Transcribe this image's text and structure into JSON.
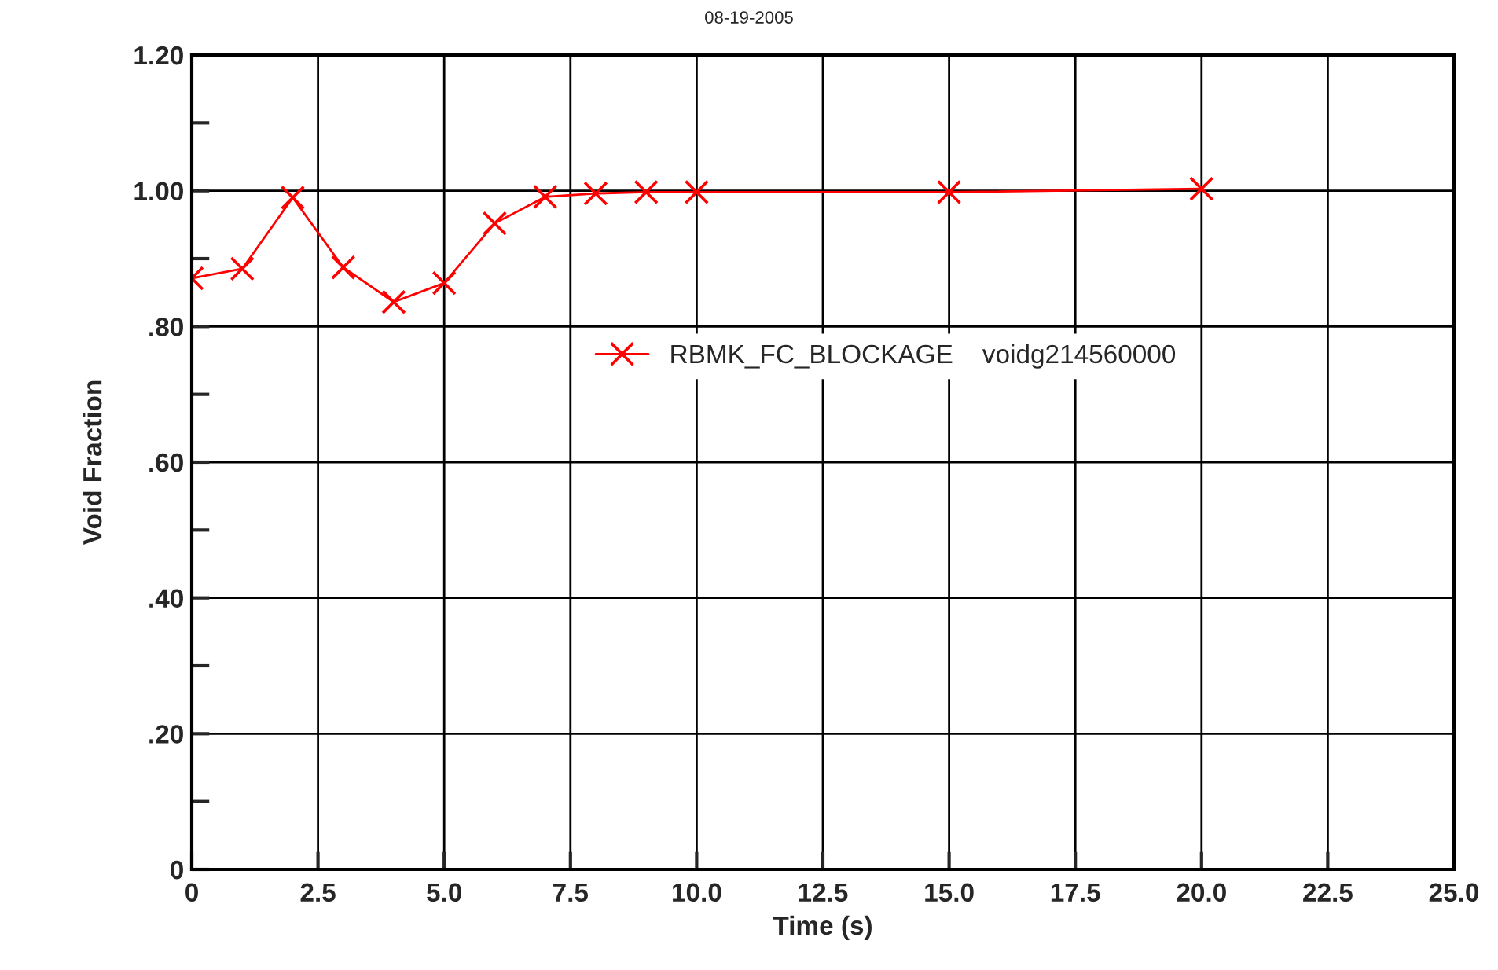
{
  "chart_data": {
    "type": "line",
    "title": "08-19-2005",
    "xlabel": "Time (s)",
    "ylabel": "Void Fraction",
    "xlim": [
      0,
      25
    ],
    "ylim": [
      0,
      1.2
    ],
    "xticks": [
      0,
      2.5,
      {
        "value": 5,
        "label": "5.0"
      },
      7.5,
      {
        "value": 10,
        "label": "10.0"
      },
      12.5,
      {
        "value": 15,
        "label": "15.0"
      },
      17.5,
      {
        "value": 20,
        "label": "20.0"
      },
      22.5,
      {
        "value": 25,
        "label": "25.0"
      }
    ],
    "yticks": [
      0,
      {
        "value": 0.1,
        "label": null
      },
      {
        "value": 0.2,
        "label": ".20"
      },
      {
        "value": 0.3,
        "label": null
      },
      {
        "value": 0.4,
        "label": ".40"
      },
      {
        "value": 0.5,
        "label": null
      },
      {
        "value": 0.6,
        "label": ".60"
      },
      {
        "value": 0.7,
        "label": null
      },
      {
        "value": 0.8,
        "label": ".80"
      },
      {
        "value": 0.9,
        "label": null
      },
      {
        "value": 1.0,
        "label": "1.00"
      },
      {
        "value": 1.1,
        "label": null
      },
      {
        "value": 1.2,
        "label": "1.20"
      }
    ],
    "grid": true,
    "legend": "top right",
    "marker": "cross",
    "line_style": "solid",
    "series": [
      {
        "name": "RBMK_FC_BLOCKAGE    voidg214560000",
        "color": "#ff0000",
        "x": [
          0,
          1,
          2,
          3,
          4,
          5,
          6,
          7,
          8,
          9,
          10,
          15,
          20
        ],
        "values": [
          0.871,
          0.885,
          0.99,
          0.887,
          0.836,
          0.864,
          0.952,
          0.991,
          0.996,
          0.998,
          0.998,
          0.998,
          1.003
        ]
      }
    ]
  }
}
